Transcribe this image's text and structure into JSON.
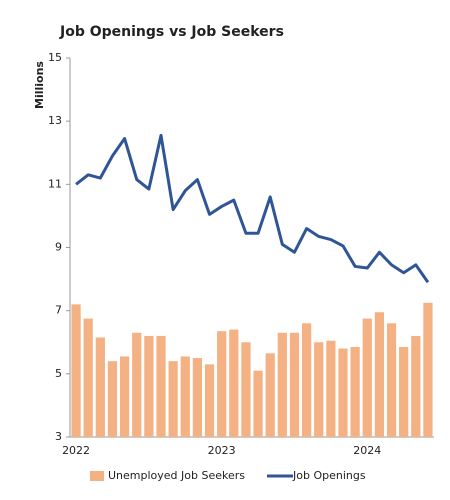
{
  "chart_data": {
    "type": "bar-line",
    "title": "Job Openings vs Job Seekers",
    "ylabel": "Millions",
    "categories": [
      "2022",
      null,
      null,
      null,
      null,
      null,
      null,
      null,
      null,
      null,
      null,
      null,
      "2023",
      null,
      null,
      null,
      null,
      null,
      null,
      null,
      null,
      null,
      null,
      null,
      "2024",
      null,
      null,
      null,
      null,
      null
    ],
    "series": [
      {
        "name": "Unemployed Job Seekers",
        "type": "bar",
        "color": "#f4b183",
        "values": [
          7.2,
          6.75,
          6.15,
          5.4,
          5.55,
          6.3,
          6.2,
          6.2,
          5.4,
          5.55,
          5.5,
          5.3,
          6.35,
          6.4,
          6.0,
          5.1,
          5.65,
          6.3,
          6.3,
          6.6,
          6.0,
          6.05,
          5.8,
          5.85,
          6.75,
          6.95,
          6.6,
          5.85,
          6.2,
          7.25
        ]
      },
      {
        "name": "Job Openings",
        "type": "line",
        "color": "#2f5597",
        "values": [
          11.0,
          11.3,
          11.2,
          11.9,
          12.45,
          11.15,
          10.85,
          12.55,
          10.2,
          10.8,
          11.15,
          10.05,
          10.3,
          10.5,
          9.45,
          9.45,
          10.6,
          9.1,
          8.85,
          9.6,
          9.35,
          9.25,
          9.05,
          8.4,
          8.35,
          8.85,
          8.45,
          8.2,
          8.45,
          7.9
        ]
      }
    ],
    "ylim": [
      3,
      15
    ],
    "yticks": [
      3,
      5,
      7,
      9,
      11,
      13,
      15
    ],
    "legend": "bottom"
  }
}
